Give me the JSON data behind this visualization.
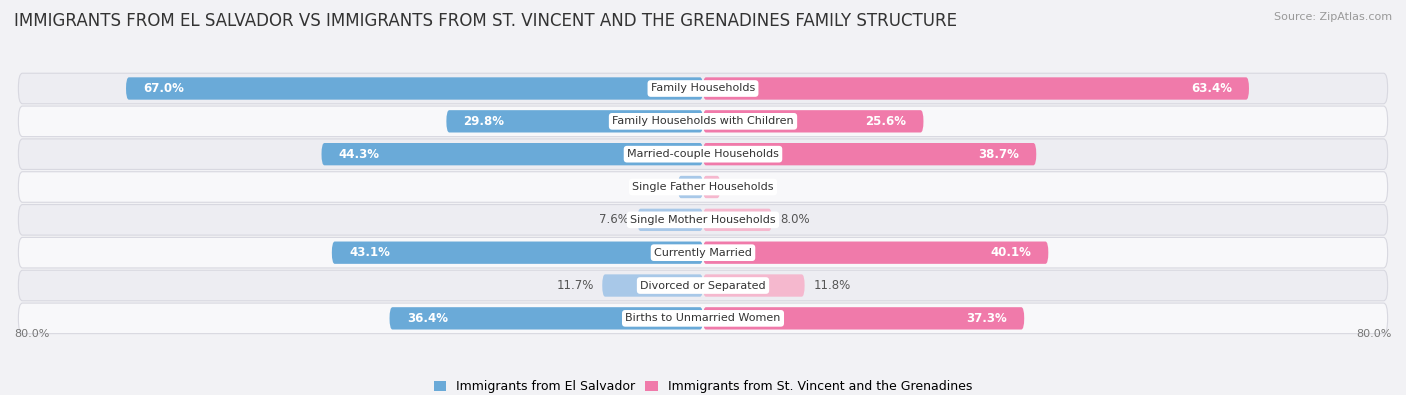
{
  "title": "IMMIGRANTS FROM EL SALVADOR VS IMMIGRANTS FROM ST. VINCENT AND THE GRENADINES FAMILY STRUCTURE",
  "source": "Source: ZipAtlas.com",
  "categories": [
    "Family Households",
    "Family Households with Children",
    "Married-couple Households",
    "Single Father Households",
    "Single Mother Households",
    "Currently Married",
    "Divorced or Separated",
    "Births to Unmarried Women"
  ],
  "el_salvador": [
    67.0,
    29.8,
    44.3,
    2.9,
    7.6,
    43.1,
    11.7,
    36.4
  ],
  "st_vincent": [
    63.4,
    25.6,
    38.7,
    2.0,
    8.0,
    40.1,
    11.8,
    37.3
  ],
  "el_salvador_color": "#6aaad8",
  "st_vincent_color": "#f07aaa",
  "el_salvador_light_color": "#a8c8e8",
  "st_vincent_light_color": "#f5b8ce",
  "background_color": "#f2f2f5",
  "row_bg_color_light": "#f8f8fa",
  "row_bg_color_dark": "#ededf2",
  "row_border_color": "#d8d8e0",
  "xlim_val": 80,
  "title_fontsize": 12,
  "bar_label_fontsize": 8.5,
  "cat_label_fontsize": 8,
  "legend_label_el_salvador": "Immigrants from El Salvador",
  "legend_label_st_vincent": "Immigrants from St. Vincent and the Grenadines"
}
